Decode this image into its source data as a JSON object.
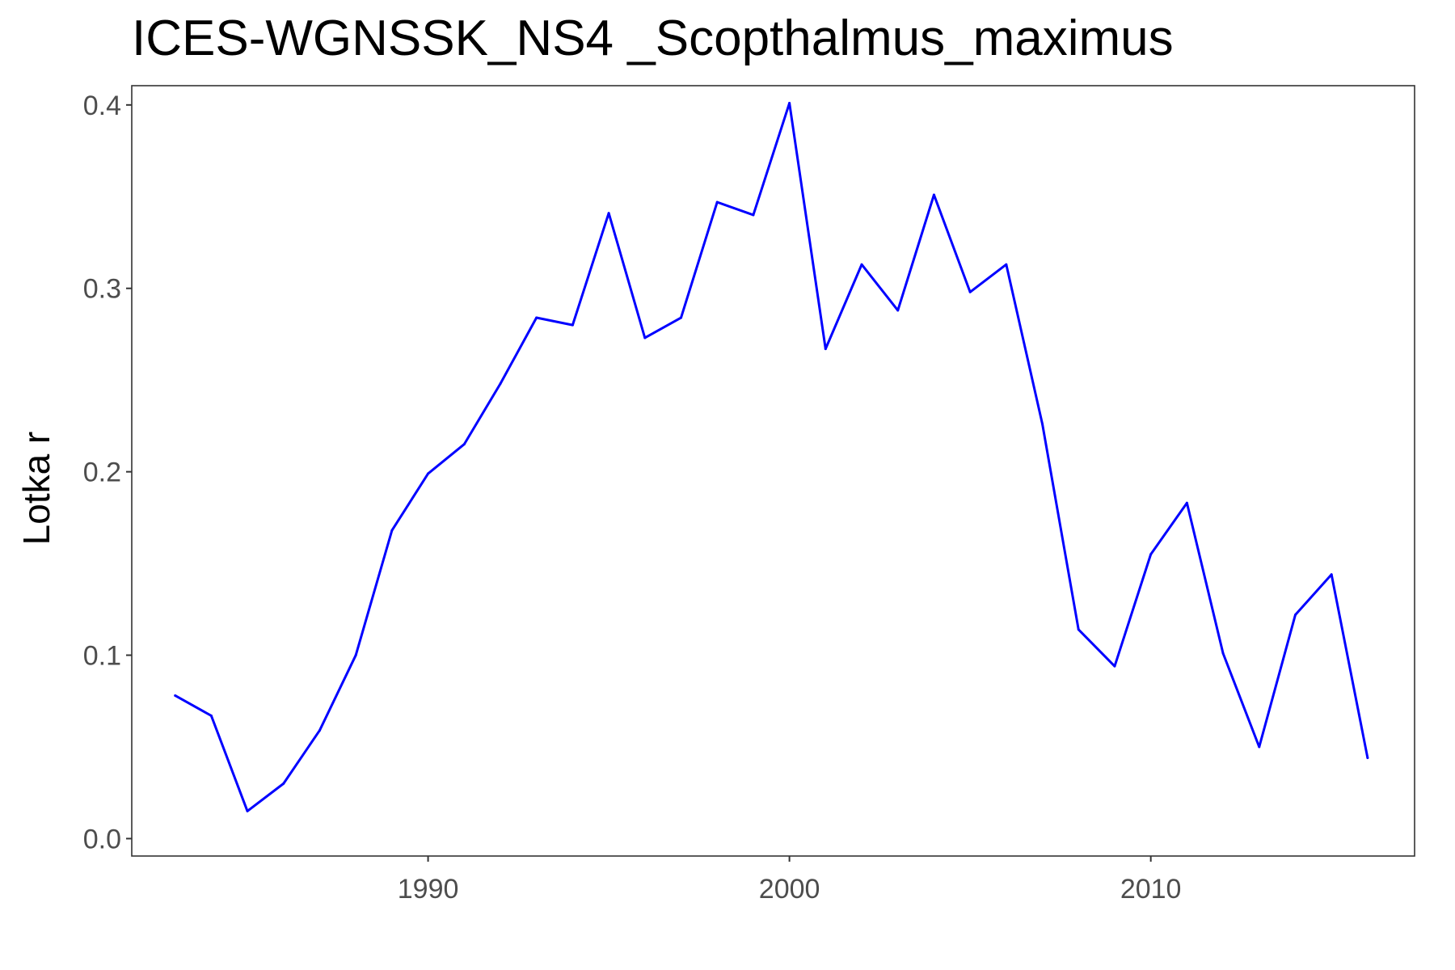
{
  "chart_data": {
    "type": "line",
    "title": "ICES-WGNSSK_NS4 _Scopthalmus_maximus",
    "xlabel": "",
    "ylabel": "Lotka r",
    "xlim": [
      1981.8,
      2017.3
    ],
    "ylim": [
      -0.0095,
      0.4105
    ],
    "x_ticks": [
      1990,
      2000,
      2010
    ],
    "y_ticks": [
      0.0,
      0.1,
      0.2,
      0.3,
      0.4
    ],
    "x_tick_labels": [
      "1990",
      "2000",
      "2010"
    ],
    "y_tick_labels": [
      "0.0",
      "0.1",
      "0.2",
      "0.3",
      "0.4"
    ],
    "grid": false,
    "series_color": "#0000ff",
    "series": [
      {
        "x": [
          1983,
          1984,
          1985,
          1986,
          1987,
          1988,
          1989,
          1990,
          1991,
          1992,
          1993,
          1994,
          1995,
          1996,
          1997,
          1998,
          1999,
          2000,
          2001,
          2002,
          2003,
          2004,
          2005,
          2006,
          2007,
          2008,
          2009,
          2010,
          2011,
          2012,
          2013,
          2014,
          2015,
          2016
        ],
        "y": [
          0.078,
          0.067,
          0.015,
          0.03,
          0.059,
          0.1,
          0.168,
          0.199,
          0.215,
          0.248,
          0.284,
          0.28,
          0.341,
          0.273,
          0.284,
          0.347,
          0.34,
          0.401,
          0.267,
          0.313,
          0.288,
          0.351,
          0.298,
          0.313,
          0.226,
          0.114,
          0.094,
          0.155,
          0.183,
          0.101,
          0.05,
          0.122,
          0.144,
          0.044
        ]
      }
    ]
  }
}
